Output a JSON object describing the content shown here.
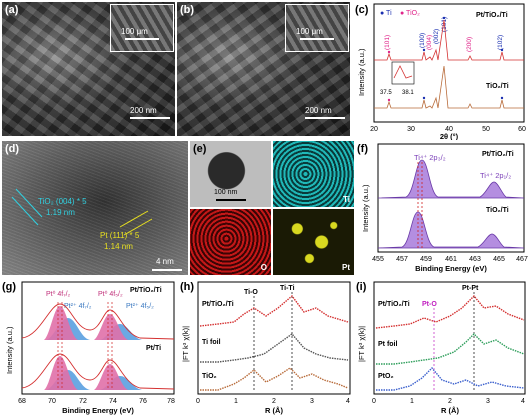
{
  "panels": {
    "a": {
      "letter": "(a)",
      "inset_scale": "100 μm",
      "scale": "200 nm"
    },
    "b": {
      "letter": "(b)",
      "inset_scale": "100 μm",
      "scale": "200 nm"
    },
    "c": {
      "letter": "(c)",
      "legend_ti": "● Ti",
      "legend_tio2": "● TiO₂",
      "sample_top": "Pt/TiO₂/Ti",
      "sample_bottom": "TiO₂/Ti",
      "ylabel": "Intensity (a.u.)",
      "xlabel": "2θ (°)",
      "ticks": [
        "20",
        "30",
        "40",
        "50",
        "60"
      ],
      "peaks": [
        "(101)",
        "(100)",
        "(004)",
        "(002)",
        "(101)",
        "(200)",
        "(102)"
      ],
      "zoom_ticks": [
        "37.5",
        "38.1"
      ]
    },
    "d": {
      "letter": "(d)",
      "tio2_label": "TiO₂ (004) * 5",
      "tio2_value": "1.19 nm",
      "pt_label": "Pt (111) * 5",
      "pt_value": "1.14 nm",
      "scale": "4 nm"
    },
    "e": {
      "letter": "(e)",
      "scale": "100 nm",
      "ti": "Ti",
      "o": "O",
      "pt": "Pt"
    },
    "f": {
      "letter": "(f)",
      "sample_top": "Pt/TiO₂/Ti",
      "sample_bottom": "TiO₂/Ti",
      "peak1": "Ti⁴⁺ 2p₃/₂",
      "peak2": "Ti⁴⁺ 2p₁/₂",
      "ylabel": "Intensity (a.u.)",
      "xlabel": "Binding Energy (eV)",
      "ticks": [
        "455",
        "457",
        "459",
        "461",
        "463",
        "465",
        "467"
      ]
    },
    "g": {
      "letter": "(g)",
      "sample_top": "Pt/TiO₂/Ti",
      "sample_bottom": "Pt/Ti",
      "pt0_72": "Pt⁰ 4f₇/₂",
      "pt0_52": "Pt⁰ 4f₅/₂",
      "pt2_72": "Pt²⁺ 4f₇/₂",
      "pt2_52": "Pt²⁺ 4f₅/₂",
      "ylabel": "Intensity (a.u.)",
      "xlabel": "Binding Energy (eV)",
      "ticks": [
        "68",
        "70",
        "72",
        "74",
        "76",
        "78"
      ]
    },
    "h": {
      "letter": "(h)",
      "s1": "Pt/TiO₂/Ti",
      "s2": "Ti foil",
      "s3": "TiO₂",
      "l1": "Ti-O",
      "l2": "Ti-Ti",
      "ylabel": "|FT k³ χ(k)|",
      "xlabel": "R (Å)",
      "ticks": [
        "0",
        "1",
        "2",
        "3",
        "4"
      ]
    },
    "i": {
      "letter": "(i)",
      "s1": "Pt/TiO₂/Ti",
      "s2": "Pt foil",
      "s3": "PtO₂",
      "l1": "Pt-O",
      "l2": "Pt-Pt",
      "ylabel": "|FT k³ χ(k)|",
      "xlabel": "R (Å)",
      "ticks": [
        "0",
        "1",
        "2",
        "3",
        "4"
      ]
    }
  },
  "colors": {
    "ti_blue": "#1a2fb0",
    "tio2_pink": "#e0248a",
    "xps_purple": "#9b6fd0",
    "pt0_pink": "#e070a8",
    "pt2_blue": "#5aa0e0",
    "curve_red": "#d43030",
    "curve_grey": "#555555",
    "curve_brown": "#b86b3a",
    "curve_green": "#2e9e5b",
    "curve_blue": "#3a5fcd",
    "map_cyan": "#20b8b8",
    "map_red": "#c41818",
    "map_yellow": "#d8d820"
  }
}
